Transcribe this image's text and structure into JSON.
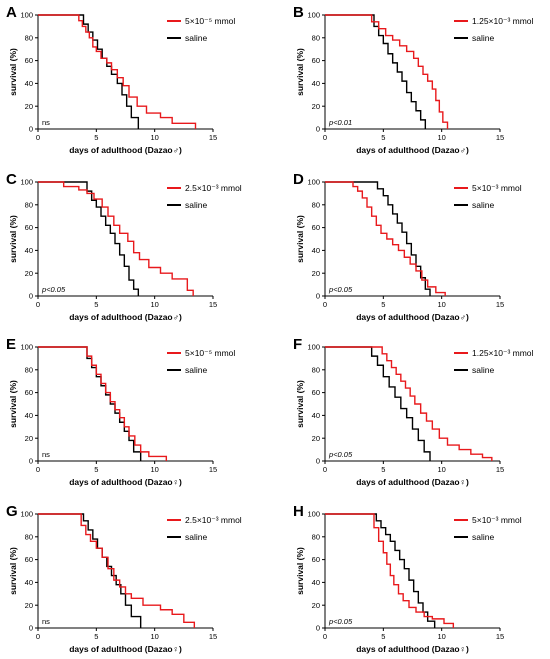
{
  "chart_data": [
    {
      "type": "line",
      "panel": "A",
      "xlabel": "days of adulthood (Dazao♂)",
      "ylabel": "survival (%)",
      "xlim": [
        0,
        15
      ],
      "ylim": [
        0,
        100
      ],
      "xticks": [
        "0",
        "5",
        "10",
        "15"
      ],
      "yticks": [
        "0",
        "20",
        "40",
        "60",
        "80",
        "100"
      ],
      "annotation": "ns",
      "legend_position": "top-right",
      "series": [
        {
          "name": "5×10⁻⁵ mmol",
          "color": "#e8191c",
          "x": [
            0,
            3.2,
            3.5,
            3.8,
            4.1,
            4.4,
            4.7,
            5.0,
            5.4,
            5.9,
            6.3,
            6.8,
            7.3,
            7.8,
            8.5,
            9.3,
            10.5,
            11.5,
            13.5
          ],
          "y": [
            100,
            100,
            95,
            90,
            85,
            80,
            72,
            68,
            62,
            58,
            52,
            45,
            38,
            28,
            20,
            14,
            10,
            5,
            0
          ]
        },
        {
          "name": "saline",
          "color": "#000000",
          "x": [
            0,
            3.6,
            3.9,
            4.3,
            4.7,
            5.1,
            5.5,
            5.9,
            6.3,
            6.8,
            7.2,
            7.6,
            8.0,
            8.6
          ],
          "y": [
            100,
            100,
            92,
            85,
            78,
            70,
            62,
            55,
            48,
            40,
            30,
            20,
            10,
            0
          ]
        }
      ]
    },
    {
      "type": "line",
      "panel": "B",
      "xlabel": "days of adulthood (Dazao♂)",
      "ylabel": "survival (%)",
      "xlim": [
        0,
        15
      ],
      "ylim": [
        0,
        100
      ],
      "xticks": [
        "0",
        "5",
        "10",
        "15"
      ],
      "yticks": [
        "0",
        "20",
        "40",
        "60",
        "80",
        "100"
      ],
      "annotation": "p<0.01",
      "legend_position": "top-right",
      "series": [
        {
          "name": "1.25×10⁻³ mmol",
          "color": "#e8191c",
          "x": [
            0,
            3.6,
            4.0,
            4.6,
            5.2,
            5.8,
            6.4,
            7.0,
            7.6,
            8.0,
            8.4,
            8.8,
            9.2,
            9.5,
            9.8,
            10.1,
            10.5
          ],
          "y": [
            100,
            100,
            94,
            88,
            82,
            78,
            73,
            68,
            62,
            55,
            48,
            42,
            35,
            25,
            15,
            6,
            0
          ]
        },
        {
          "name": "saline",
          "color": "#000000",
          "x": [
            0,
            3.8,
            4.2,
            4.6,
            5.0,
            5.4,
            5.8,
            6.2,
            6.6,
            7.0,
            7.4,
            7.8,
            8.2,
            8.6
          ],
          "y": [
            100,
            100,
            90,
            82,
            75,
            66,
            58,
            50,
            42,
            32,
            24,
            16,
            8,
            0
          ]
        }
      ]
    },
    {
      "type": "line",
      "panel": "C",
      "xlabel": "days of adulthood (Dazao♂)",
      "ylabel": "survival (%)",
      "xlim": [
        0,
        15
      ],
      "ylim": [
        0,
        100
      ],
      "xticks": [
        "0",
        "5",
        "10",
        "15"
      ],
      "yticks": [
        "0",
        "20",
        "40",
        "60",
        "80",
        "100"
      ],
      "annotation": "p<0.05",
      "legend_position": "top-right",
      "series": [
        {
          "name": "2.5×10⁻³ mmol",
          "color": "#e8191c",
          "x": [
            0,
            2.2,
            3.5,
            4.2,
            4.8,
            5.5,
            6.0,
            6.5,
            7.0,
            7.7,
            8.2,
            8.7,
            9.5,
            10.5,
            11.5,
            12.8,
            13.3
          ],
          "y": [
            100,
            96,
            93,
            90,
            85,
            78,
            70,
            62,
            55,
            48,
            38,
            32,
            25,
            20,
            15,
            5,
            0
          ]
        },
        {
          "name": "saline",
          "color": "#000000",
          "x": [
            0,
            3.8,
            4.2,
            4.6,
            5.0,
            5.4,
            5.8,
            6.2,
            6.6,
            7.0,
            7.4,
            7.8,
            8.2,
            8.6
          ],
          "y": [
            100,
            100,
            92,
            84,
            78,
            70,
            62,
            55,
            46,
            36,
            26,
            14,
            6,
            0
          ]
        }
      ]
    },
    {
      "type": "line",
      "panel": "D",
      "xlabel": "days of adulthood (Dazao♂)",
      "ylabel": "survival (%)",
      "xlim": [
        0,
        15
      ],
      "ylim": [
        0,
        100
      ],
      "xticks": [
        "0",
        "5",
        "10",
        "15"
      ],
      "yticks": [
        "0",
        "20",
        "40",
        "60",
        "80",
        "100"
      ],
      "annotation": "p<0.05",
      "legend_position": "top-right",
      "series": [
        {
          "name": "5×10⁻³ mmol",
          "color": "#e8191c",
          "x": [
            0,
            2.0,
            2.4,
            2.8,
            3.2,
            3.6,
            4.0,
            4.4,
            4.8,
            5.3,
            5.8,
            6.3,
            6.8,
            7.3,
            7.8,
            8.3,
            8.8,
            9.5,
            10.3
          ],
          "y": [
            100,
            100,
            96,
            92,
            86,
            78,
            70,
            62,
            55,
            50,
            45,
            40,
            34,
            28,
            22,
            14,
            8,
            3,
            0
          ]
        },
        {
          "name": "saline",
          "color": "#000000",
          "x": [
            0,
            4.0,
            4.5,
            5.0,
            5.4,
            5.8,
            6.2,
            6.6,
            7.0,
            7.4,
            7.8,
            8.2,
            8.6,
            9.0
          ],
          "y": [
            100,
            100,
            94,
            88,
            80,
            72,
            64,
            56,
            46,
            36,
            26,
            16,
            6,
            0
          ]
        }
      ]
    },
    {
      "type": "line",
      "panel": "E",
      "xlabel": "days of adulthood (Dazao♀)",
      "ylabel": "survival (%)",
      "xlim": [
        0,
        15
      ],
      "ylim": [
        0,
        100
      ],
      "xticks": [
        "0",
        "5",
        "10",
        "15"
      ],
      "yticks": [
        "0",
        "20",
        "40",
        "60",
        "80",
        "100"
      ],
      "annotation": "ns",
      "legend_position": "top-right",
      "series": [
        {
          "name": "5×10⁻⁵ mmol",
          "color": "#e8191c",
          "x": [
            0,
            3.8,
            4.2,
            4.6,
            5.0,
            5.4,
            5.8,
            6.2,
            6.6,
            7.0,
            7.4,
            7.8,
            8.3,
            8.8,
            9.5,
            11.0
          ],
          "y": [
            100,
            100,
            92,
            84,
            76,
            68,
            60,
            52,
            45,
            38,
            30,
            22,
            14,
            8,
            4,
            0
          ]
        },
        {
          "name": "saline",
          "color": "#000000",
          "x": [
            0,
            3.8,
            4.2,
            4.6,
            5.0,
            5.4,
            5.8,
            6.2,
            6.6,
            7.0,
            7.4,
            7.8,
            8.2,
            8.8
          ],
          "y": [
            100,
            100,
            90,
            82,
            74,
            66,
            58,
            50,
            42,
            34,
            26,
            18,
            8,
            0
          ]
        }
      ]
    },
    {
      "type": "line",
      "panel": "F",
      "xlabel": "days of adulthood (Dazao♀)",
      "ylabel": "survival (%)",
      "xlim": [
        0,
        15
      ],
      "ylim": [
        0,
        100
      ],
      "xticks": [
        "0",
        "5",
        "10",
        "15"
      ],
      "yticks": [
        "0",
        "20",
        "40",
        "60",
        "80",
        "100"
      ],
      "annotation": "p<0.05",
      "legend_position": "top-right",
      "series": [
        {
          "name": "1.25×10⁻³ mmol",
          "color": "#e8191c",
          "x": [
            0,
            4.5,
            4.9,
            5.3,
            5.7,
            6.1,
            6.5,
            6.9,
            7.3,
            7.7,
            8.2,
            8.7,
            9.2,
            9.8,
            10.5,
            11.5,
            12.5,
            13.5,
            14.3
          ],
          "y": [
            100,
            100,
            94,
            88,
            82,
            76,
            70,
            64,
            57,
            50,
            42,
            35,
            28,
            20,
            14,
            10,
            6,
            3,
            0
          ]
        },
        {
          "name": "saline",
          "color": "#000000",
          "x": [
            0,
            3.5,
            4.0,
            4.5,
            5.0,
            5.5,
            6.0,
            6.5,
            7.0,
            7.5,
            8.0,
            8.5,
            9.0
          ],
          "y": [
            100,
            100,
            92,
            84,
            74,
            65,
            56,
            46,
            38,
            28,
            18,
            8,
            0
          ]
        }
      ]
    },
    {
      "type": "line",
      "panel": "G",
      "xlabel": "days of adulthood (Dazao♀)",
      "ylabel": "survival (%)",
      "xlim": [
        0,
        15
      ],
      "ylim": [
        0,
        100
      ],
      "xticks": [
        "0",
        "5",
        "10",
        "15"
      ],
      "yticks": [
        "0",
        "20",
        "40",
        "60",
        "80",
        "100"
      ],
      "annotation": "ns",
      "legend_position": "top-right",
      "series": [
        {
          "name": "2.5×10⁻³ mmol",
          "color": "#e8191c",
          "x": [
            0,
            3.3,
            3.7,
            4.1,
            4.5,
            5.0,
            5.5,
            6.0,
            6.5,
            7.0,
            7.5,
            8.0,
            9.0,
            10.5,
            11.5,
            12.5,
            13.4
          ],
          "y": [
            100,
            100,
            90,
            82,
            76,
            70,
            62,
            52,
            42,
            36,
            30,
            26,
            20,
            16,
            12,
            5,
            0
          ]
        },
        {
          "name": "saline",
          "color": "#000000",
          "x": [
            0,
            3.5,
            3.9,
            4.3,
            4.7,
            5.1,
            5.5,
            5.9,
            6.3,
            6.7,
            7.1,
            7.5,
            8.0,
            8.8
          ],
          "y": [
            100,
            100,
            94,
            86,
            78,
            70,
            62,
            54,
            46,
            38,
            30,
            20,
            10,
            0
          ]
        }
      ]
    },
    {
      "type": "line",
      "panel": "H",
      "xlabel": "days of adulthood (Dazao♀)",
      "ylabel": "survival (%)",
      "xlim": [
        0,
        15
      ],
      "ylim": [
        0,
        100
      ],
      "xticks": [
        "0",
        "5",
        "10",
        "15"
      ],
      "yticks": [
        "0",
        "20",
        "40",
        "60",
        "80",
        "100"
      ],
      "annotation": "p<0.05",
      "legend_position": "top-right",
      "series": [
        {
          "name": "5×10⁻³ mmol",
          "color": "#e8191c",
          "x": [
            0,
            3.8,
            4.2,
            4.6,
            5.0,
            5.3,
            5.6,
            5.9,
            6.3,
            6.7,
            7.2,
            7.8,
            8.5,
            9.2,
            10.2,
            11.0
          ],
          "y": [
            100,
            100,
            88,
            76,
            66,
            56,
            46,
            38,
            30,
            24,
            18,
            14,
            10,
            8,
            4,
            0
          ]
        },
        {
          "name": "saline",
          "color": "#000000",
          "x": [
            0,
            4.0,
            4.4,
            4.8,
            5.2,
            5.6,
            6.0,
            6.4,
            6.8,
            7.2,
            7.6,
            8.0,
            8.4,
            8.8,
            9.4
          ],
          "y": [
            100,
            100,
            94,
            88,
            82,
            76,
            68,
            60,
            52,
            42,
            32,
            22,
            14,
            6,
            0
          ]
        }
      ]
    }
  ]
}
